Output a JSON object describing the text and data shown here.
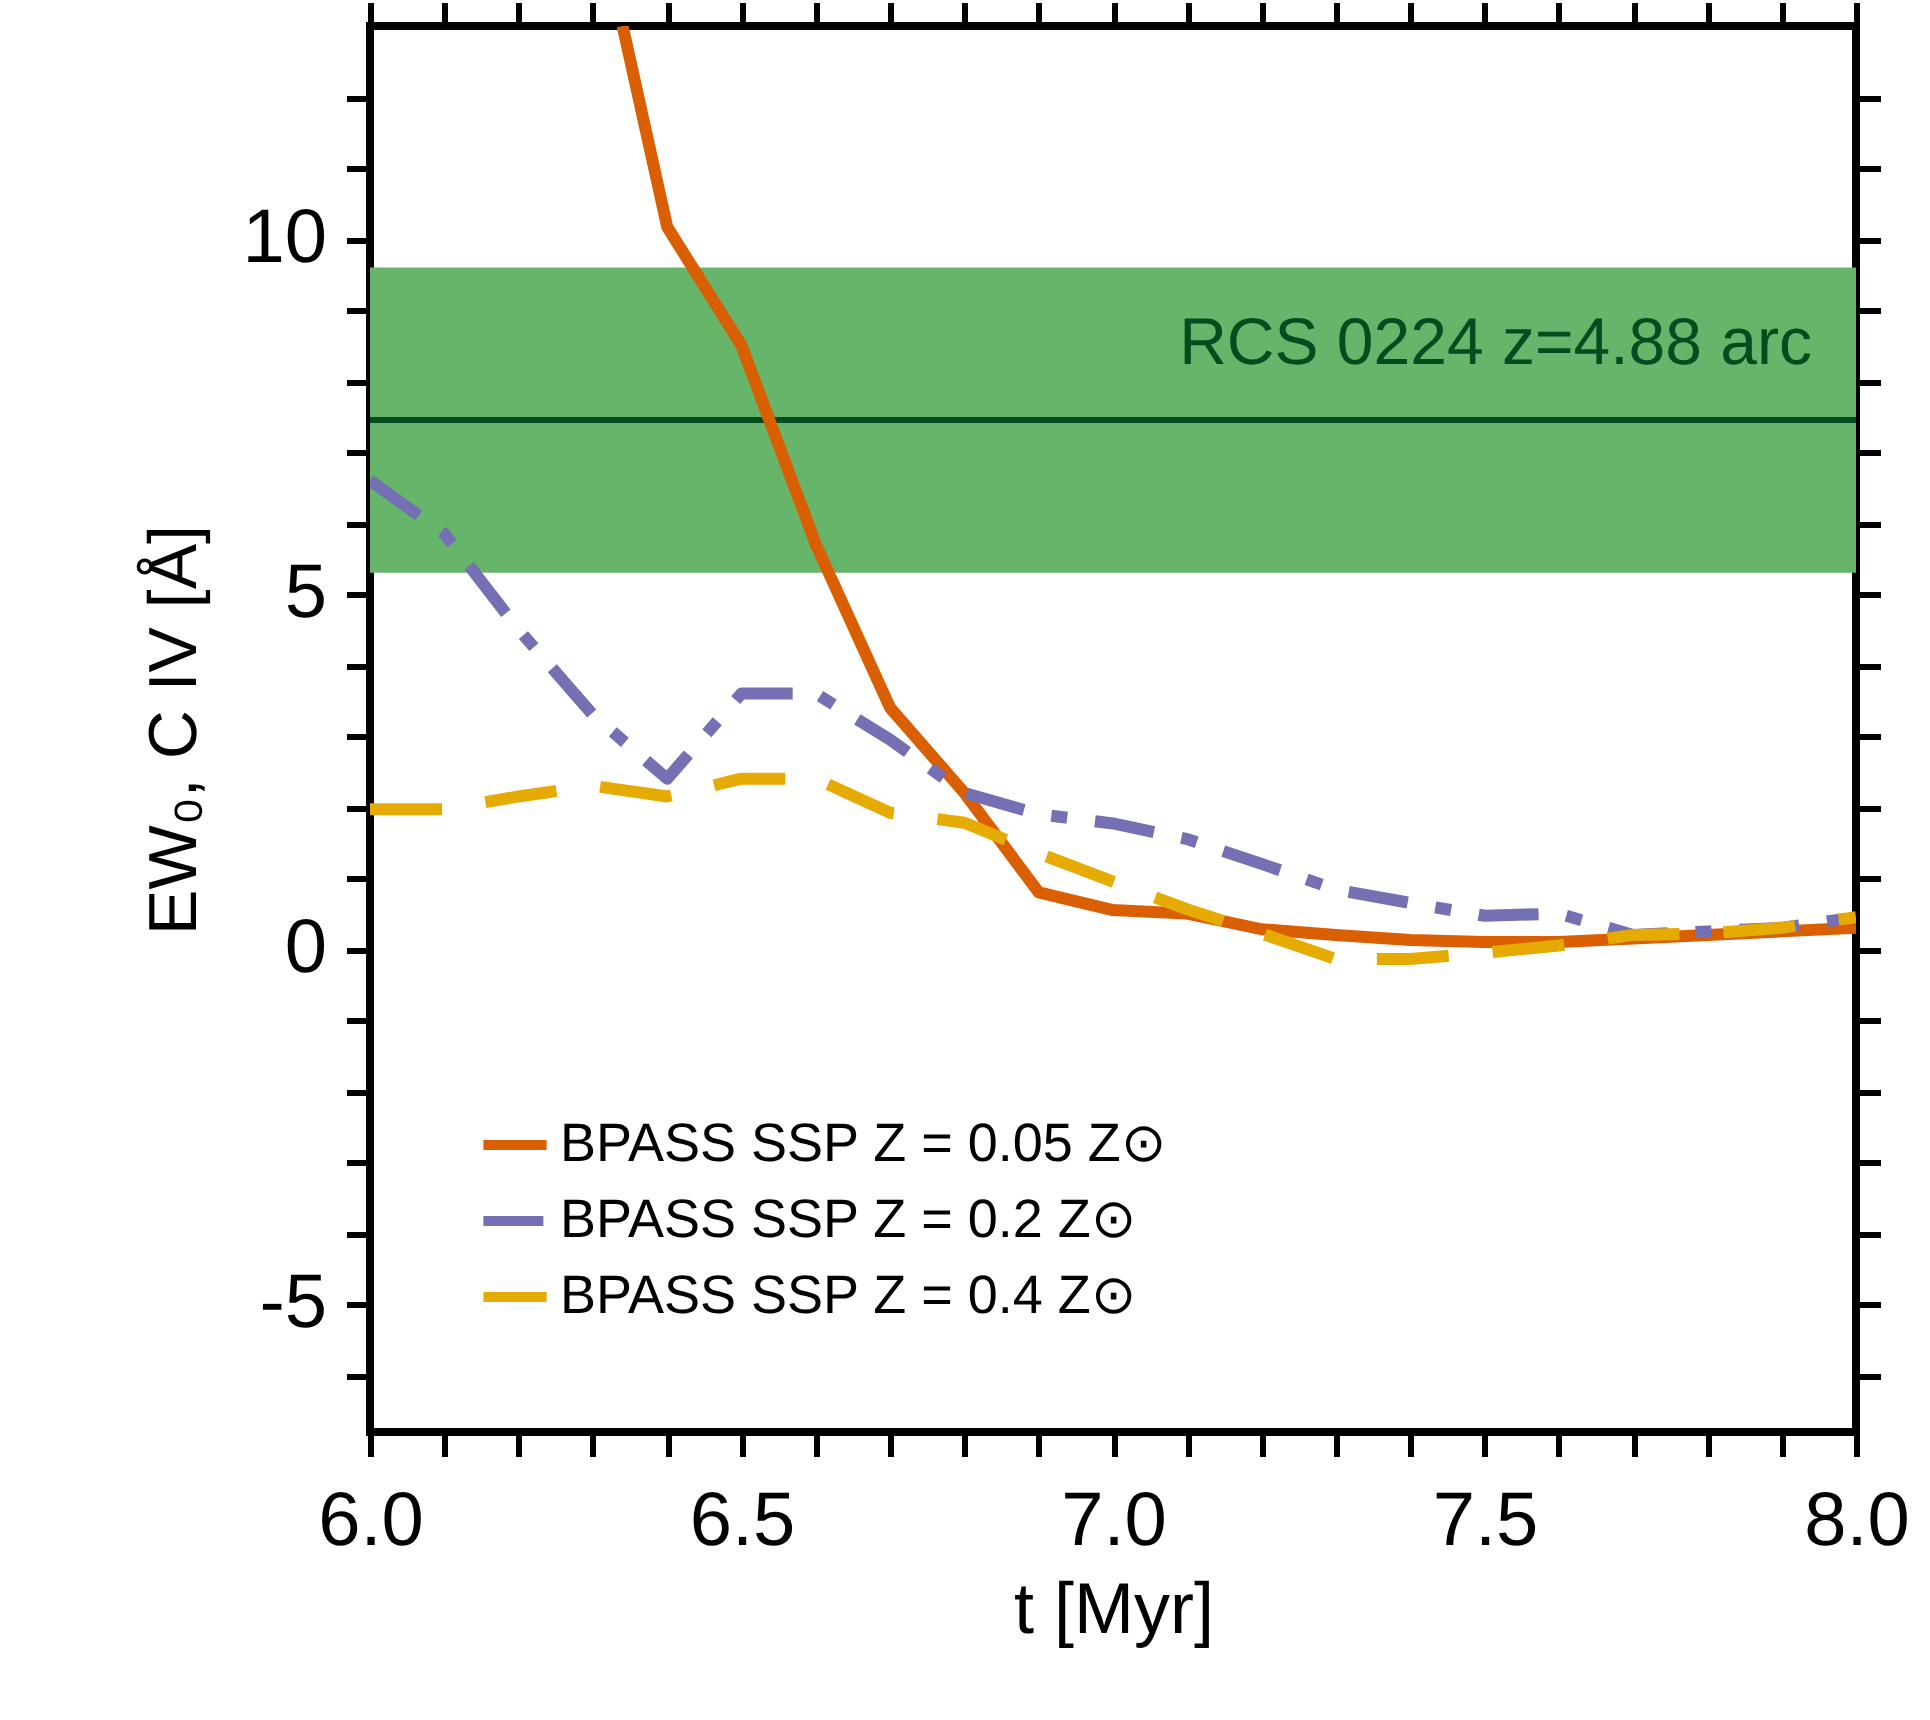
{
  "chart_data": {
    "type": "line",
    "xlabel": "t  [Myr]",
    "ylabel": "EW₀, C IV  [Å]",
    "xlim": [
      6.0,
      8.0
    ],
    "ylim": [
      -6.8,
      13
    ],
    "xticks": [
      {
        "value": 6.0,
        "label": "6.0"
      },
      {
        "value": 6.1,
        "label": null
      },
      {
        "value": 6.2,
        "label": null
      },
      {
        "value": 6.3,
        "label": null
      },
      {
        "value": 6.4,
        "label": null
      },
      {
        "value": 6.5,
        "label": "6.5"
      },
      {
        "value": 6.6,
        "label": null
      },
      {
        "value": 6.7,
        "label": null
      },
      {
        "value": 6.8,
        "label": null
      },
      {
        "value": 6.9,
        "label": null
      },
      {
        "value": 7.0,
        "label": "7.0"
      },
      {
        "value": 7.1,
        "label": null
      },
      {
        "value": 7.2,
        "label": null
      },
      {
        "value": 7.3,
        "label": null
      },
      {
        "value": 7.4,
        "label": null
      },
      {
        "value": 7.5,
        "label": "7.5"
      },
      {
        "value": 7.6,
        "label": null
      },
      {
        "value": 7.7,
        "label": null
      },
      {
        "value": 7.8,
        "label": null
      },
      {
        "value": 7.9,
        "label": null
      },
      {
        "value": 8.0,
        "label": "8.0"
      }
    ],
    "yticks": [
      {
        "value": -6,
        "label": null
      },
      -5,
      {
        "value": -4,
        "label": null
      },
      {
        "value": -3,
        "label": null
      },
      {
        "value": -2,
        "label": null
      },
      {
        "value": -1,
        "label": null
      },
      0,
      {
        "value": 1,
        "label": null
      },
      {
        "value": 2,
        "label": null
      },
      {
        "value": 3,
        "label": null
      },
      {
        "value": 4,
        "label": null
      },
      5,
      {
        "value": 6,
        "label": null
      },
      {
        "value": 7,
        "label": null
      },
      {
        "value": 8,
        "label": null
      },
      {
        "value": 9,
        "label": null
      },
      10,
      {
        "value": 11,
        "label": null
      },
      {
        "value": 12,
        "label": null
      }
    ],
    "bands": [
      {
        "axis": "y",
        "from": 5.3,
        "to": 9.6,
        "label": "RCS 0224  z=4.88 arc",
        "color": "#66b56a"
      }
    ],
    "ref_lines": [
      {
        "axis": "y",
        "value": 7.45,
        "color": "#004d20"
      }
    ],
    "legend": "bottom left",
    "grid": false,
    "series": [
      {
        "name": "BPASS SSP Z = 0.05 Z⊙",
        "color": "#d95f02",
        "line_style": "solid",
        "x": [
          6.34,
          6.4,
          6.5,
          6.6,
          6.7,
          6.8,
          6.9,
          7.0,
          7.1,
          7.2,
          7.3,
          7.4,
          7.5,
          7.6,
          7.7,
          7.8,
          7.9,
          8.0
        ],
        "values": [
          13,
          10.17,
          8.5,
          5.7,
          3.4,
          2.2,
          0.8,
          0.55,
          0.5,
          0.28,
          0.2,
          0.13,
          0.1,
          0.1,
          0.15,
          0.2,
          0.25,
          0.3
        ]
      },
      {
        "name": "BPASS SSP Z = 0.2 Z⊙",
        "color": "#7570b3",
        "line_style": "dashdot",
        "x": [
          6.0,
          6.1,
          6.2,
          6.3,
          6.4,
          6.5,
          6.6,
          6.7,
          6.8,
          6.9,
          7.0,
          7.1,
          7.2,
          7.3,
          7.4,
          7.5,
          7.6,
          7.7,
          7.8,
          7.9,
          8.0
        ],
        "values": [
          6.6,
          5.85,
          4.5,
          3.3,
          2.4,
          3.6,
          3.6,
          2.95,
          2.2,
          1.9,
          1.77,
          1.55,
          1.2,
          0.84,
          0.65,
          0.47,
          0.5,
          0.2,
          0.25,
          0.3,
          0.45
        ]
      },
      {
        "name": "BPASS SSP Z = 0.4 Z⊙",
        "color": "#e6ab02",
        "line_style": "dashed",
        "x": [
          6.0,
          6.1,
          6.2,
          6.3,
          6.4,
          6.5,
          6.6,
          6.7,
          6.8,
          6.9,
          7.0,
          7.1,
          7.2,
          7.3,
          7.4,
          7.5,
          7.6,
          7.7,
          7.8,
          7.9,
          8.0
        ],
        "values": [
          1.97,
          1.97,
          2.15,
          2.3,
          2.15,
          2.4,
          2.4,
          1.92,
          1.78,
          1.35,
          0.95,
          0.56,
          0.22,
          -0.14,
          -0.14,
          -0.05,
          0.05,
          0.2,
          0.22,
          0.3,
          0.45
        ]
      }
    ]
  }
}
